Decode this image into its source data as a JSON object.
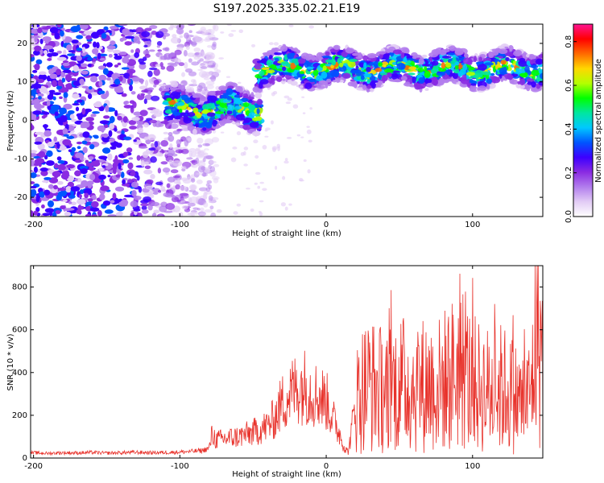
{
  "figure": {
    "title": "S197.2025.335.02.21.E19"
  },
  "colors": {
    "snr_line": "#e8322b",
    "colormap": [
      "#ffffff",
      "#e2ccf5",
      "#b27ded",
      "#8a2be2",
      "#3c00ff",
      "#0055ff",
      "#00c8ff",
      "#00e6a0",
      "#00ff00",
      "#b4ff00",
      "#ffd700",
      "#ff6a00",
      "#ff0000",
      "#ff1493"
    ]
  },
  "chart_data": [
    {
      "type": "heatmap",
      "name": "spectrogram",
      "xlabel": "Height of straight line (km)",
      "ylabel": "Frequency (Hz)",
      "xlim": [
        -202,
        148
      ],
      "ylim": [
        -25,
        25
      ],
      "xticks": [
        -200,
        -100,
        0,
        100
      ],
      "xtick_labels": [
        "-200",
        "-100",
        "0",
        "100"
      ],
      "yticks": [
        -20,
        -10,
        0,
        10,
        20
      ],
      "ytick_labels": [
        "-20",
        "-10",
        "0",
        "10",
        "20"
      ],
      "colorbar": {
        "label": "Normalized spectral amplitude",
        "range": [
          0,
          0.88
        ],
        "ticks": [
          0.0,
          0.2,
          0.4,
          0.6,
          0.8
        ],
        "tick_labels": [
          "0.0",
          "0.2",
          "0.4",
          "0.6",
          "0.8"
        ]
      },
      "description_values": {
        "noise_region_x": [
          -202,
          -90
        ],
        "segment_1": {
          "x": [
            -110,
            -45
          ],
          "center_freq": 3
        },
        "segment_2": {
          "x": [
            -48,
            148
          ],
          "center_freq": 13.5
        }
      }
    },
    {
      "type": "line",
      "name": "snr",
      "xlabel": "Height of straight line (km)",
      "ylabel": "SNR (10 * v/v)",
      "xlim": [
        -202,
        148
      ],
      "ylim": [
        0,
        900
      ],
      "xticks": [
        -200,
        -100,
        0,
        100
      ],
      "xtick_labels": [
        "-200",
        "-100",
        "0",
        "100"
      ],
      "yticks": [
        0,
        200,
        400,
        600,
        800
      ],
      "ytick_labels": [
        "0",
        "200",
        "400",
        "600",
        "800"
      ],
      "series": [
        {
          "name": "SNR",
          "x": [
            -202,
            -190,
            -180,
            -170,
            -160,
            -150,
            -140,
            -130,
            -120,
            -110,
            -100,
            -95,
            -90,
            -85,
            -80,
            -78,
            -75,
            -70,
            -65,
            -60,
            -55,
            -50,
            -45,
            -40,
            -35,
            -30,
            -25,
            -20,
            -15,
            -10,
            -5,
            0,
            5,
            10,
            13,
            15,
            17,
            20,
            25,
            30,
            35,
            40,
            45,
            50,
            55,
            60,
            65,
            70,
            75,
            80,
            85,
            90,
            95,
            100,
            105,
            110,
            115,
            120,
            125,
            130,
            135,
            140,
            143,
            145,
            148
          ],
          "values": [
            25,
            22,
            25,
            24,
            26,
            23,
            25,
            27,
            25,
            26,
            28,
            30,
            32,
            35,
            45,
            110,
            85,
            90,
            95,
            100,
            110,
            120,
            135,
            150,
            190,
            260,
            300,
            330,
            340,
            310,
            290,
            270,
            180,
            100,
            40,
            30,
            110,
            270,
            330,
            350,
            320,
            330,
            330,
            350,
            340,
            330,
            340,
            350,
            330,
            360,
            380,
            420,
            390,
            350,
            330,
            320,
            300,
            330,
            310,
            280,
            260,
            300,
            560,
            600,
            450
          ]
        }
      ]
    }
  ]
}
